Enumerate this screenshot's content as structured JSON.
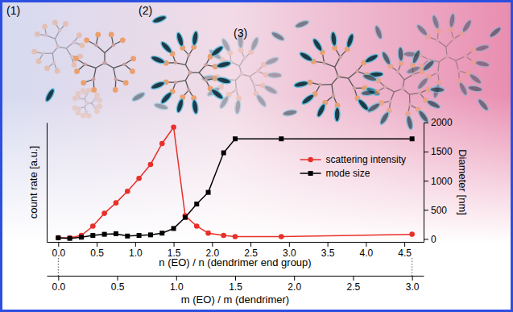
{
  "chart_data": {
    "type": "line",
    "annotations": [
      "(1)",
      "(2)",
      "(3)"
    ],
    "x_label": "n (EO) / n (dendrimer end group)",
    "x2_label": "m (EO) / m (dendrimer)",
    "y_label": "count rate [a.u.]",
    "y2_label": "Diameter [nm]",
    "x": [
      0,
      0.15,
      0.3,
      0.45,
      0.6,
      0.75,
      0.9,
      1.05,
      1.2,
      1.35,
      1.5,
      1.65,
      1.8,
      1.95,
      2.15,
      2.3,
      2.9,
      4.6
    ],
    "series": [
      {
        "name": "scattering intensity",
        "color": "#e8302a",
        "marker": "circle",
        "line_style": "solid",
        "values": [
          1,
          1,
          3,
          11,
          22,
          31,
          41,
          52,
          64,
          82,
          96,
          20,
          11,
          5,
          3,
          2,
          2,
          4
        ]
      },
      {
        "name": "mode size",
        "color": "#000000",
        "marker": "square",
        "line_style": "solid",
        "axis": "y2",
        "values": [
          20,
          10,
          30,
          60,
          80,
          90,
          50,
          60,
          70,
          100,
          180,
          370,
          600,
          800,
          1480,
          1720,
          1720,
          1720
        ]
      }
    ],
    "xlim": [
      -0.15,
      4.75
    ],
    "xticks": [
      {
        "value": 0,
        "label": "0.0"
      },
      0.5,
      {
        "value": 1,
        "label": "1.0"
      },
      1.5,
      {
        "value": 2,
        "label": "2.0"
      },
      2.5,
      {
        "value": 3,
        "label": "3.0"
      },
      3.5,
      {
        "value": 4,
        "label": "4.0"
      },
      4.5
    ],
    "x2lim": [
      -0.098,
      3.098
    ],
    "x2ticks": [
      {
        "value": 0,
        "label": "0.0"
      },
      0.5,
      {
        "value": 1,
        "label": "1.0"
      },
      1.5,
      {
        "value": 2,
        "label": "2.0"
      },
      2.5,
      {
        "value": 3,
        "label": "3.0"
      }
    ],
    "ylim": [
      -2.5,
      100
    ],
    "yticks": [],
    "y2lim": [
      -50,
      2000
    ],
    "y2ticks": [
      0,
      500,
      1000,
      1500,
      2000
    ],
    "grid": false,
    "legend": "right"
  }
}
